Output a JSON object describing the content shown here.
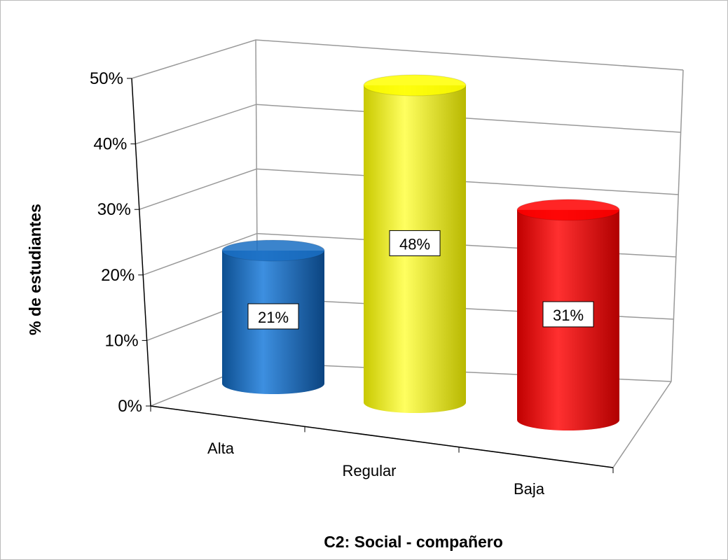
{
  "chart_data": {
    "type": "bar3d",
    "x_label": "C2: Social - compañero",
    "y_label": "%  de estudiantes",
    "categories": [
      "Alta",
      "Regular",
      "Baja"
    ],
    "values": [
      21,
      48,
      31
    ],
    "value_labels": [
      "21%",
      "48%",
      "31%"
    ],
    "colors": [
      "#1a6fc4",
      "#ffff00",
      "#ff0000"
    ],
    "ylim": [
      0,
      50
    ],
    "yticks": [
      {
        "value": 0,
        "label": "0%"
      },
      {
        "value": 10,
        "label": "10%"
      },
      {
        "value": 20,
        "label": "20%"
      },
      {
        "value": 30,
        "label": "30%"
      },
      {
        "value": 40,
        "label": "40%"
      },
      {
        "value": 50,
        "label": "50%"
      }
    ],
    "grid": true
  }
}
